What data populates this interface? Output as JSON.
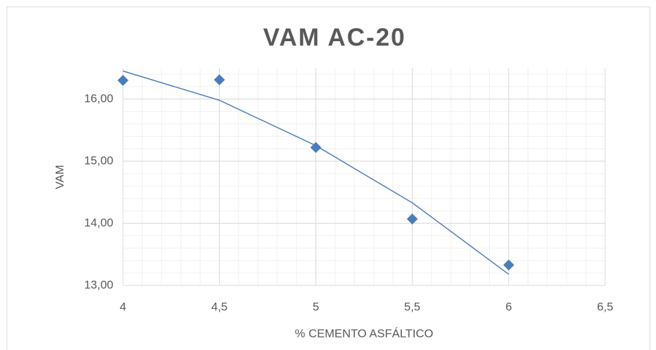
{
  "chart_data": {
    "type": "scatter",
    "title": "VAM AC-20",
    "xlabel": "% CEMENTO ASFÁLTICO",
    "ylabel": "VAM",
    "series": [
      {
        "color": "#4a7ebb",
        "x": [
          4,
          4.5,
          5,
          5.5,
          6
        ],
        "values": [
          16.3,
          16.31,
          15.22,
          14.07,
          13.33
        ]
      }
    ],
    "trendline": {
      "color": "#4a7ebb",
      "x": [
        4,
        4.5,
        5,
        5.5,
        6
      ],
      "values": [
        16.45,
        15.98,
        15.25,
        14.33,
        13.18
      ]
    },
    "xlim": [
      4,
      6.5
    ],
    "xticks": [
      4,
      {
        "value": 4.5,
        "label": "4,5"
      },
      5,
      {
        "value": 5.5,
        "label": "5,5"
      },
      6,
      {
        "value": 6.5,
        "label": "6,5"
      }
    ],
    "ylim": [
      13,
      16.5
    ],
    "yticks": [
      {
        "value": 13,
        "label": "13,00"
      },
      {
        "value": 14,
        "label": "14,00"
      },
      {
        "value": 15,
        "label": "15,00"
      },
      {
        "value": 16,
        "label": "16,00"
      }
    ],
    "grid": true,
    "minor_grid": true
  }
}
